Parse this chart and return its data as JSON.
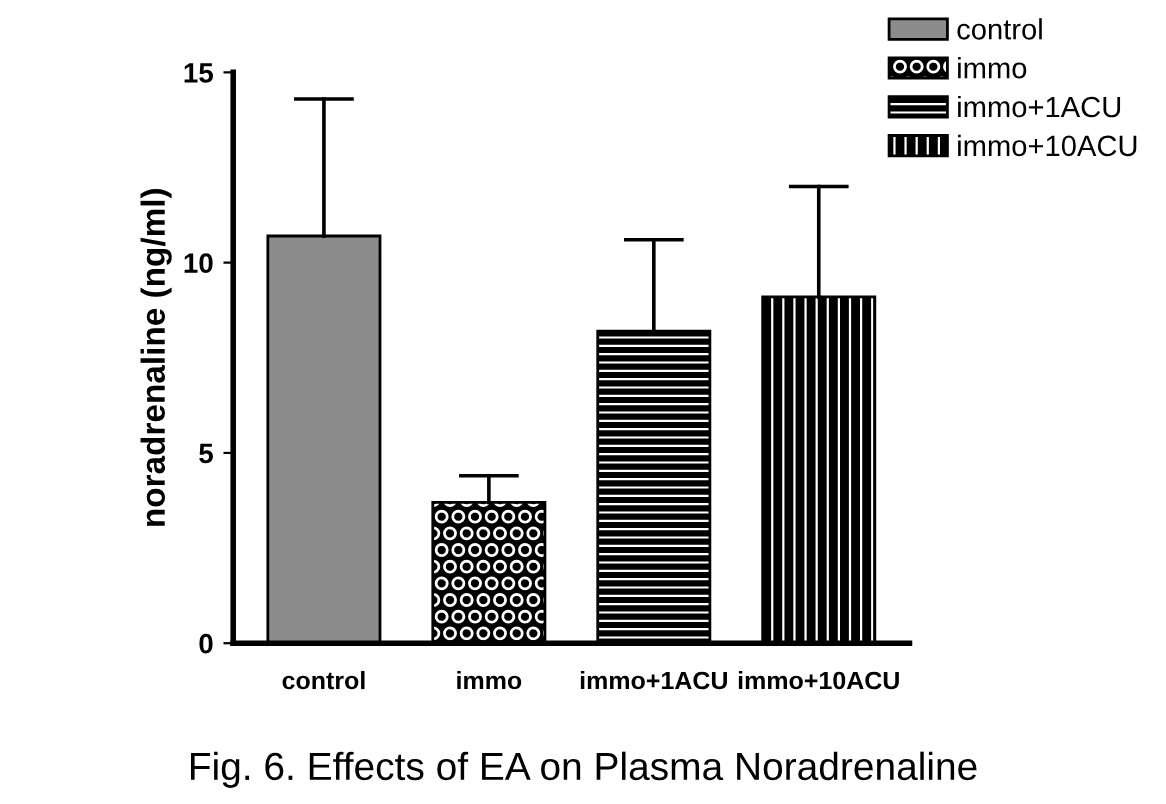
{
  "chart_data": {
    "type": "bar",
    "ylabel": "noradrenaline (ng/ml)",
    "categories": [
      "control",
      "immo",
      "immo+1ACU",
      "immo+10ACU"
    ],
    "series": [
      {
        "name": "control",
        "color": "#8c8c8c",
        "values": [
          10.7,
          null,
          null,
          null
        ],
        "errors": [
          [
            10.7,
            14.3
          ],
          null,
          null,
          null
        ]
      },
      {
        "name": "immo",
        "color": "#000000",
        "values": [
          null,
          3.7,
          null,
          null
        ],
        "errors": [
          null,
          [
            3.7,
            4.4
          ],
          null,
          null
        ]
      },
      {
        "name": "immo+1ACU",
        "color": "#000000",
        "values": [
          null,
          null,
          8.2,
          null
        ],
        "errors": [
          null,
          null,
          [
            8.2,
            10.6
          ],
          null
        ]
      },
      {
        "name": "immo+10ACU",
        "color": "#000000",
        "values": [
          null,
          null,
          null,
          9.1
        ],
        "errors": [
          null,
          null,
          null,
          [
            9.1,
            12.0
          ]
        ]
      }
    ],
    "ylim": [
      0,
      15
    ],
    "yticks": [
      0,
      5,
      10,
      15
    ],
    "grid": false,
    "legend": "top right",
    "annotations": [
      "Fig. 6. Effects of EA on Plasma Noradrenaline"
    ]
  }
}
